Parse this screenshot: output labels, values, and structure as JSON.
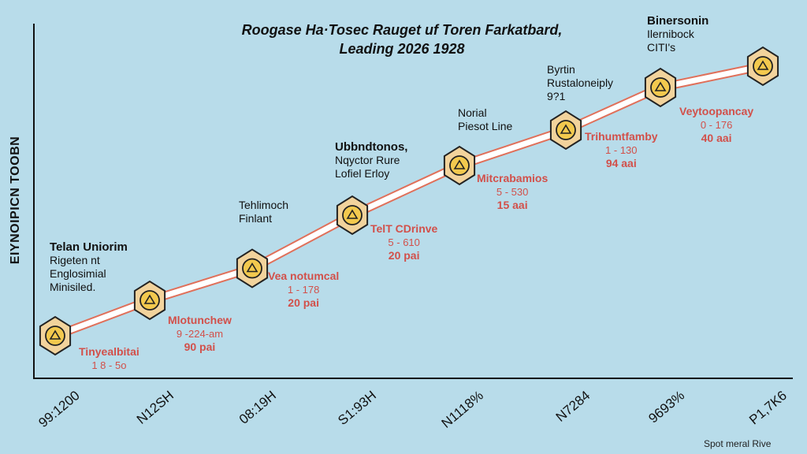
{
  "chart_data": {
    "type": "line",
    "title": "Roogase Ha·Tosec Rauget uf Toren Farkatbard,",
    "subtitle": "Leading 2026 1928",
    "ylabel": "EIYNOIPICN TOOBN",
    "xlabel": "Spot meral Rive",
    "categories": [
      "99:1200",
      "N12SH",
      "08:19H",
      "S1:93H",
      "N1118%",
      "N7284",
      "9693%",
      "P1,7K6"
    ],
    "values": [
      12,
      22,
      31,
      46,
      60,
      70,
      82,
      88
    ],
    "ylim": [
      0,
      100
    ],
    "grid": false,
    "point_labels": [
      {
        "name": "Tinyealbitai",
        "range": "1 8 - 5o",
        "value": ""
      },
      {
        "name": "Mlotunchew",
        "range": "9 -224-am",
        "value": "90 pai"
      },
      {
        "name": "Vea notumcal",
        "range": "1 - 178",
        "value": "20 pai"
      },
      {
        "name": "TelT CDrinve",
        "range": "5 - 610",
        "value": "20 pai"
      },
      {
        "name": "Mitcrabamios",
        "range": "5 - 530",
        "value": "15 aai"
      },
      {
        "name": "Trihumtfamby",
        "range": "1 - 130",
        "value": "94 aai"
      },
      {
        "name": "Veytoopancay",
        "range": "0 - 176",
        "value": "40 aai"
      },
      {
        "name": "",
        "range": "",
        "value": ""
      }
    ],
    "annotations": [
      {
        "head": "Telan Uniorim",
        "lines": [
          "Rigeten nt",
          "Englosimial",
          "Minisiled."
        ]
      },
      {
        "head": "",
        "lines": [
          "Tehlimoch",
          "Finlant"
        ]
      },
      {
        "head": "Ubbndtonos,",
        "lines": [
          "Nqyctor Rure",
          "Lofiel Erloy"
        ]
      },
      {
        "head": "",
        "lines": [
          "Norial",
          "Piesot Line"
        ]
      },
      {
        "head": "",
        "lines": [
          "Byrtin",
          "Rustaloneiply",
          "9?1"
        ]
      },
      {
        "head": "Binersonin",
        "lines": [
          "Ilernibock",
          "CITI's"
        ]
      }
    ],
    "colors": {
      "background": "#b8dcea",
      "line": "#ffffff",
      "line_outline": "#e0705a",
      "marker_fill": "#f2d39c",
      "marker_inner": "#f3c94e",
      "label_text": "#d2504a"
    }
  }
}
